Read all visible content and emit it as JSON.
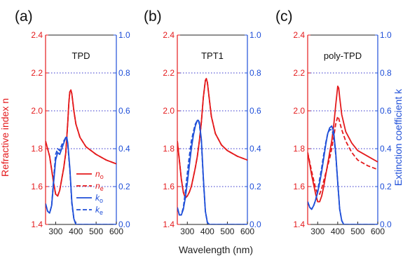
{
  "figure": {
    "ylabel_left": "Refractive index n",
    "ylabel_right": "Extinction coefficient k",
    "xlabel": "Wavelength (nm)",
    "colors": {
      "n": "#e41a1c",
      "k": "#1f4fd8",
      "grid": "#3333cc"
    }
  },
  "chart_data": [
    {
      "type": "line",
      "panel_label": "(a)",
      "title": "TPD",
      "xlabel": "Wavelength (nm)",
      "ylabel": "Refractive index n",
      "ylabel_right": "Extinction coefficient k",
      "xlim": [
        250,
        600
      ],
      "ylim": [
        1.4,
        2.4
      ],
      "ylim_right": [
        0.0,
        1.0
      ],
      "x_ticks": [
        "300",
        "400",
        "500",
        "600"
      ],
      "y_ticks": [
        "1.4",
        "1.6",
        "1.8",
        "2.0",
        "2.2",
        "2.4"
      ],
      "y_ticks_right": [
        "0.0",
        "0.2",
        "0.4",
        "0.6",
        "0.8",
        "1.0"
      ],
      "grid": "horizontal dotted at right-axis 0.2, 0.4, 0.6, 0.8",
      "legend": {
        "position": "bottom-right",
        "entries": [
          "n_o",
          "n_e",
          "k_o",
          "k_e"
        ]
      },
      "series": [
        {
          "name": "n_o",
          "axis": "left",
          "style": "solid",
          "color": "#e41a1c",
          "x": [
            250,
            270,
            290,
            300,
            310,
            320,
            330,
            340,
            350,
            355,
            360,
            365,
            370,
            375,
            380,
            390,
            400,
            420,
            450,
            500,
            550,
            600
          ],
          "y": [
            1.84,
            1.76,
            1.62,
            1.56,
            1.55,
            1.58,
            1.64,
            1.7,
            1.78,
            1.86,
            1.94,
            2.04,
            2.1,
            2.11,
            2.09,
            2.0,
            1.93,
            1.86,
            1.81,
            1.77,
            1.74,
            1.72
          ]
        },
        {
          "name": "n_e",
          "axis": "left",
          "style": "dashed",
          "color": "#e41a1c",
          "x": [
            250,
            270,
            290,
            300,
            310,
            320,
            330,
            340,
            350,
            355,
            360,
            365,
            370,
            375,
            380,
            390,
            400,
            420,
            450,
            500,
            550,
            600
          ],
          "y": [
            1.84,
            1.76,
            1.62,
            1.56,
            1.55,
            1.58,
            1.64,
            1.7,
            1.78,
            1.86,
            1.94,
            2.04,
            2.1,
            2.11,
            2.09,
            2.0,
            1.93,
            1.86,
            1.81,
            1.77,
            1.74,
            1.72
          ]
        },
        {
          "name": "k_o",
          "axis": "right",
          "style": "solid",
          "color": "#1f4fd8",
          "x": [
            250,
            260,
            270,
            280,
            290,
            300,
            310,
            320,
            330,
            340,
            350,
            355,
            360,
            370,
            380,
            390,
            400,
            410,
            600
          ],
          "y": [
            0.11,
            0.07,
            0.06,
            0.1,
            0.22,
            0.34,
            0.38,
            0.37,
            0.4,
            0.43,
            0.46,
            0.46,
            0.43,
            0.3,
            0.12,
            0.03,
            0.0,
            0.0,
            0.0
          ]
        },
        {
          "name": "k_e",
          "axis": "right",
          "style": "dashed",
          "color": "#1f4fd8",
          "x": [
            250,
            260,
            270,
            280,
            290,
            300,
            310,
            320,
            330,
            340,
            350,
            355,
            360,
            370,
            380,
            390,
            400,
            410,
            600
          ],
          "y": [
            0.11,
            0.07,
            0.06,
            0.1,
            0.24,
            0.37,
            0.4,
            0.39,
            0.42,
            0.44,
            0.46,
            0.45,
            0.42,
            0.29,
            0.11,
            0.03,
            0.0,
            0.0,
            0.0
          ]
        }
      ]
    },
    {
      "type": "line",
      "panel_label": "(b)",
      "title": "TPT1",
      "xlabel": "Wavelength (nm)",
      "ylabel": "Refractive index n",
      "ylabel_right": "Extinction coefficient k",
      "xlim": [
        250,
        600
      ],
      "ylim": [
        1.4,
        2.4
      ],
      "ylim_right": [
        0.0,
        1.0
      ],
      "x_ticks": [
        "300",
        "400",
        "500",
        "600"
      ],
      "y_ticks": [
        "1.4",
        "1.6",
        "1.8",
        "2.0",
        "2.2",
        "2.4"
      ],
      "y_ticks_right": [
        "0.0",
        "0.2",
        "0.4",
        "0.6",
        "0.8",
        "1.0"
      ],
      "grid": "horizontal dotted at right-axis 0.2, 0.4, 0.6, 0.8",
      "series": [
        {
          "name": "n_o",
          "axis": "left",
          "style": "solid",
          "color": "#e41a1c",
          "x": [
            250,
            260,
            270,
            280,
            290,
            300,
            310,
            320,
            330,
            340,
            350,
            360,
            370,
            380,
            390,
            395,
            400,
            410,
            420,
            440,
            470,
            500,
            550,
            600
          ],
          "y": [
            1.84,
            1.74,
            1.64,
            1.57,
            1.54,
            1.55,
            1.57,
            1.6,
            1.65,
            1.7,
            1.76,
            1.84,
            1.94,
            2.07,
            2.16,
            2.17,
            2.15,
            2.06,
            1.97,
            1.88,
            1.82,
            1.79,
            1.76,
            1.74
          ]
        },
        {
          "name": "n_e",
          "axis": "left",
          "style": "dashed",
          "color": "#e41a1c",
          "x": [
            250,
            260,
            270,
            280,
            290,
            300,
            310,
            320,
            330,
            340,
            350,
            360,
            370,
            380,
            390,
            395,
            400,
            410,
            420,
            440,
            470,
            500,
            550,
            600
          ],
          "y": [
            1.84,
            1.74,
            1.64,
            1.57,
            1.54,
            1.55,
            1.57,
            1.6,
            1.65,
            1.7,
            1.76,
            1.84,
            1.94,
            2.07,
            2.16,
            2.17,
            2.15,
            2.06,
            1.97,
            1.88,
            1.82,
            1.79,
            1.76,
            1.74
          ]
        },
        {
          "name": "k_o",
          "axis": "right",
          "style": "solid",
          "color": "#1f4fd8",
          "x": [
            250,
            260,
            270,
            280,
            290,
            300,
            310,
            320,
            330,
            340,
            350,
            355,
            360,
            370,
            380,
            390,
            400,
            410,
            600
          ],
          "y": [
            0.09,
            0.05,
            0.05,
            0.08,
            0.14,
            0.22,
            0.31,
            0.4,
            0.47,
            0.52,
            0.55,
            0.55,
            0.54,
            0.45,
            0.25,
            0.07,
            0.01,
            0.0,
            0.0
          ]
        },
        {
          "name": "k_e",
          "axis": "right",
          "style": "dashed",
          "color": "#1f4fd8",
          "x": [
            250,
            260,
            270,
            280,
            290,
            300,
            310,
            320,
            330,
            340,
            350,
            355,
            360,
            370,
            380,
            390,
            400,
            410,
            600
          ],
          "y": [
            0.09,
            0.05,
            0.05,
            0.09,
            0.17,
            0.27,
            0.36,
            0.44,
            0.49,
            0.53,
            0.55,
            0.55,
            0.53,
            0.44,
            0.24,
            0.07,
            0.01,
            0.0,
            0.0
          ]
        }
      ]
    },
    {
      "type": "line",
      "panel_label": "(c)",
      "title": "poly-TPD",
      "xlabel": "Wavelength (nm)",
      "ylabel": "Refractive index n",
      "ylabel_right": "Extinction coefficient k",
      "xlim": [
        250,
        600
      ],
      "ylim": [
        1.4,
        2.4
      ],
      "ylim_right": [
        0.0,
        1.0
      ],
      "x_ticks": [
        "300",
        "400",
        "500",
        "600"
      ],
      "y_ticks": [
        "1.4",
        "1.6",
        "1.8",
        "2.0",
        "2.2",
        "2.4"
      ],
      "y_ticks_right": [
        "0.0",
        "0.2",
        "0.4",
        "0.6",
        "0.8",
        "1.0"
      ],
      "grid": "horizontal dotted at right-axis 0.2, 0.4, 0.6, 0.8",
      "series": [
        {
          "name": "n_o",
          "axis": "left",
          "style": "solid",
          "color": "#e41a1c",
          "x": [
            250,
            270,
            290,
            300,
            310,
            320,
            330,
            340,
            350,
            360,
            370,
            380,
            390,
            400,
            405,
            410,
            420,
            440,
            470,
            500,
            550,
            600
          ],
          "y": [
            1.78,
            1.66,
            1.56,
            1.52,
            1.52,
            1.55,
            1.6,
            1.66,
            1.72,
            1.78,
            1.84,
            1.92,
            2.03,
            2.13,
            2.12,
            2.07,
            1.98,
            1.89,
            1.83,
            1.79,
            1.76,
            1.73
          ]
        },
        {
          "name": "n_e",
          "axis": "left",
          "style": "dashed",
          "color": "#e41a1c",
          "x": [
            250,
            270,
            290,
            300,
            310,
            320,
            330,
            340,
            350,
            360,
            370,
            380,
            390,
            400,
            405,
            410,
            420,
            440,
            470,
            500,
            550,
            600
          ],
          "y": [
            1.78,
            1.68,
            1.59,
            1.56,
            1.56,
            1.59,
            1.63,
            1.67,
            1.71,
            1.75,
            1.8,
            1.86,
            1.93,
            1.97,
            1.96,
            1.94,
            1.9,
            1.84,
            1.78,
            1.74,
            1.71,
            1.69
          ]
        },
        {
          "name": "k_o",
          "axis": "right",
          "style": "solid",
          "color": "#1f4fd8",
          "x": [
            250,
            260,
            270,
            280,
            290,
            300,
            310,
            320,
            330,
            340,
            350,
            360,
            370,
            380,
            390,
            400,
            410,
            420,
            430,
            600
          ],
          "y": [
            0.12,
            0.09,
            0.08,
            0.1,
            0.13,
            0.17,
            0.22,
            0.28,
            0.35,
            0.42,
            0.48,
            0.51,
            0.52,
            0.49,
            0.38,
            0.22,
            0.08,
            0.02,
            0.0,
            0.0
          ]
        },
        {
          "name": "k_e",
          "axis": "right",
          "style": "dashed",
          "color": "#1f4fd8",
          "x": [
            250,
            260,
            270,
            280,
            290,
            300,
            310,
            320,
            330,
            340,
            350,
            360,
            370,
            380,
            390,
            400,
            410,
            420,
            430,
            600
          ],
          "y": [
            0.12,
            0.09,
            0.08,
            0.1,
            0.13,
            0.18,
            0.24,
            0.3,
            0.37,
            0.43,
            0.48,
            0.5,
            0.5,
            0.47,
            0.37,
            0.22,
            0.08,
            0.02,
            0.0,
            0.0
          ]
        }
      ]
    }
  ]
}
